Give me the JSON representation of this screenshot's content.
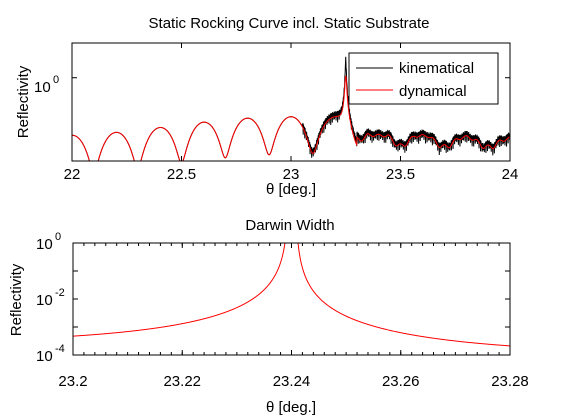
{
  "chart_data": [
    {
      "type": "line",
      "title": "Static Rocking Curve incl. Static Substrate",
      "xlabel": "θ [deg.]",
      "ylabel": "Reflectivity",
      "xlim": [
        22,
        24
      ],
      "ylim": [
        0.004,
        10
      ],
      "yscale": "log",
      "xticks": [
        22,
        22.5,
        23,
        23.5,
        24
      ],
      "xtick_labels": [
        "22",
        "22.5",
        "23",
        "23.5",
        "24"
      ],
      "ytick_label": "10",
      "ytick_exp": "0",
      "legend_position": "top-right",
      "series": [
        {
          "name": "kinematical",
          "color": "#000000"
        },
        {
          "name": "dynamical",
          "color": "#ff0000"
        }
      ]
    },
    {
      "type": "line",
      "title": "Darwin Width",
      "xlabel": "θ [deg.]",
      "ylabel": "Reflectivity",
      "xlim": [
        23.2,
        23.28
      ],
      "ylim": [
        0.0001,
        1
      ],
      "yscale": "log",
      "xticks": [
        23.2,
        23.22,
        23.24,
        23.26,
        23.28
      ],
      "xtick_labels": [
        "23.2",
        "23.22",
        "23.24",
        "23.26",
        "23.28"
      ],
      "yticks": [
        {
          "base": "10",
          "exp": "0"
        },
        {
          "base": "10",
          "exp": "-2"
        },
        {
          "base": "10",
          "exp": "-4"
        }
      ],
      "series": [
        {
          "name": "",
          "color": "#ff0000",
          "x": [
            23.2,
            23.21,
            23.22,
            23.23,
            23.235,
            23.2385,
            23.2395,
            23.241,
            23.2415,
            23.245,
            23.25,
            23.26,
            23.27,
            23.28
          ],
          "y": [
            0.00035,
            0.0006,
            0.0013,
            0.006,
            0.03,
            0.6,
            1.0,
            1.0,
            0.6,
            0.03,
            0.008,
            0.0015,
            0.0005,
            0.00018
          ]
        }
      ]
    }
  ]
}
